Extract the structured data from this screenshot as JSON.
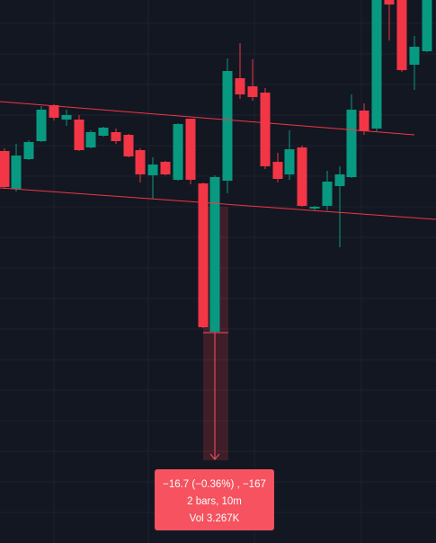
{
  "measure_tooltip": {
    "line1": "−16.7 (−0.36%) , −167",
    "line2": "2 bars, 10m",
    "line3": "Vol 3.267K"
  }
}
